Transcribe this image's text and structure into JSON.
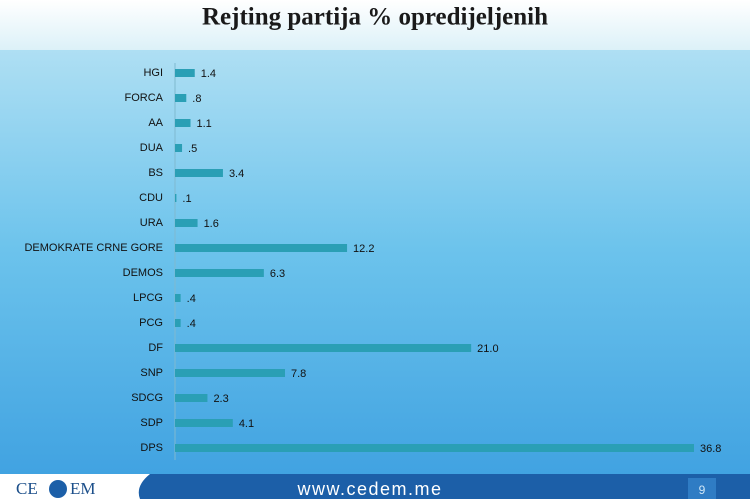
{
  "chart_data": {
    "type": "bar",
    "orientation": "horizontal",
    "title": "Rejting partija % opredijeljenih",
    "categories": [
      "HGI",
      "FORCA",
      "AA",
      "DUA",
      "BS",
      "CDU",
      "URA",
      "DEMOKRATE CRNE GORE",
      "DEMOS",
      "LPCG",
      "PCG",
      "DF",
      "SNP",
      "SDCG",
      "SDP",
      "DPS"
    ],
    "values": [
      1.4,
      0.8,
      1.1,
      0.5,
      3.4,
      0.1,
      1.6,
      12.2,
      6.3,
      0.4,
      0.4,
      21.0,
      7.8,
      2.3,
      4.1,
      36.8
    ],
    "value_labels": [
      "1.4",
      ".8",
      "1.1",
      ".5",
      "3.4",
      ".1",
      "1.6",
      "12.2",
      "6.3",
      ".4",
      ".4",
      "21.0",
      "7.8",
      "2.3",
      "4.1",
      "36.8"
    ],
    "color": "#2a9fb5"
  },
  "footer": {
    "logo_left": "CE",
    "logo_right": "EM",
    "url": "www.cedem.me",
    "page": "9"
  }
}
